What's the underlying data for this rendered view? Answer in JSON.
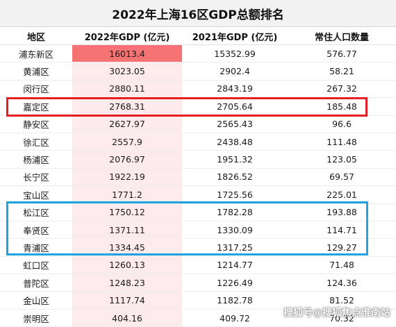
{
  "title": "2022年上海16区GDP总额排名",
  "headers": [
    "地区",
    "2022年GDP (亿元)",
    "2021年GDP (亿元)",
    "常住人口数量"
  ],
  "rows": [
    [
      "浦东新区",
      "16013.4",
      "15352.99",
      "576.77"
    ],
    [
      "黄浦区",
      "3023.05",
      "2902.4",
      "58.21"
    ],
    [
      "闵行区",
      "2880.11",
      "2843.19",
      "267.32"
    ],
    [
      "嘉定区",
      "2768.31",
      "2705.64",
      "185.48"
    ],
    [
      "静安区",
      "2627.97",
      "2565.43",
      "96.6"
    ],
    [
      "徐汇区",
      "2557.9",
      "2438.48",
      "111.48"
    ],
    [
      "杨浦区",
      "2076.97",
      "1951.32",
      "123.05"
    ],
    [
      "长宁区",
      "1922.19",
      "1826.52",
      "69.57"
    ],
    [
      "宝山区",
      "1771.2",
      "1725.56",
      "225.01"
    ],
    [
      "松江区",
      "1750.12",
      "1782.28",
      "193.88"
    ],
    [
      "奉贤区",
      "1371.11",
      "1330.09",
      "114.71"
    ],
    [
      "青浦区",
      "1334.45",
      "1317.25",
      "129.27"
    ],
    [
      "虹口区",
      "1260.13",
      "1214.77",
      "71.48"
    ],
    [
      "普陀区",
      "1248.23",
      "1226.49",
      "124.36"
    ],
    [
      "金山区",
      "1117.74",
      "1182.78",
      "81.52"
    ],
    [
      "崇明区",
      "404.16",
      "409.72",
      "70.32"
    ]
  ],
  "watermark": "搜狐号@搜狐焦点淮南站",
  "colors": {
    "highlight_top": "#f57373",
    "gdp_column_fill": "#fdeaea",
    "red_box": "#e31e24",
    "blue_box": "#1fa3e0"
  }
}
